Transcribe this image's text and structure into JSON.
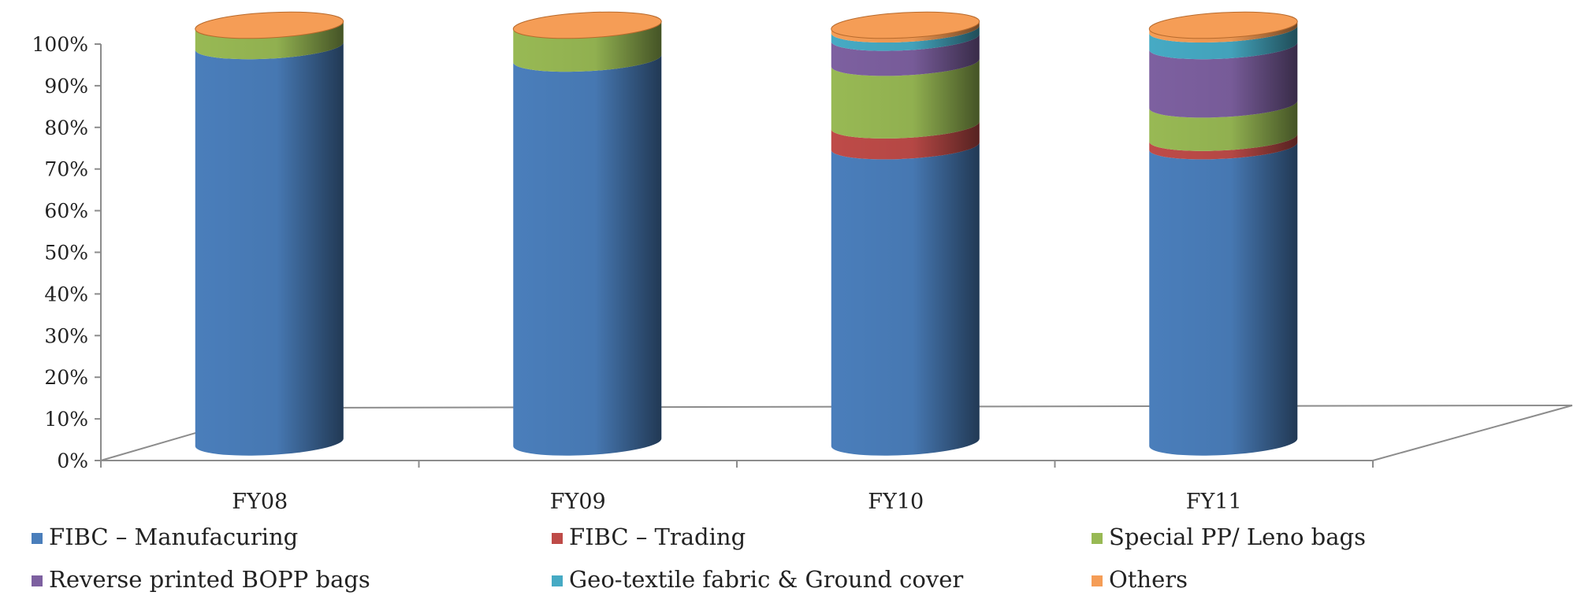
{
  "chart_data": {
    "type": "bar",
    "stacked": true,
    "percent_stacked": true,
    "style": "3d-cylinder",
    "categories": [
      "FY08",
      "FY09",
      "FY10",
      "FY11"
    ],
    "series": [
      {
        "name": "FIBC – Manufacuring",
        "color": "#4a7ebb",
        "values": [
          95,
          92,
          71,
          71
        ]
      },
      {
        "name": "FIBC – Trading",
        "color": "#be4b48",
        "values": [
          0,
          0,
          5,
          2
        ]
      },
      {
        "name": "Special PP/ Leno bags",
        "color": "#98b954",
        "values": [
          5,
          8,
          15,
          8
        ]
      },
      {
        "name": "Reverse printed BOPP bags",
        "color": "#7d60a0",
        "values": [
          0,
          0,
          6,
          14
        ]
      },
      {
        "name": "Geo-textile fabric & Ground cover",
        "color": "#46aac4",
        "values": [
          0,
          0,
          2,
          4
        ]
      },
      {
        "name": "Others",
        "color": "#f59d56",
        "values": [
          0,
          0,
          1,
          1
        ]
      }
    ],
    "y_ticks": [
      "0%",
      "10%",
      "20%",
      "30%",
      "40%",
      "50%",
      "60%",
      "70%",
      "80%",
      "90%",
      "100%"
    ],
    "ylim": [
      0,
      100
    ],
    "grid": false,
    "legend_position": "bottom"
  }
}
